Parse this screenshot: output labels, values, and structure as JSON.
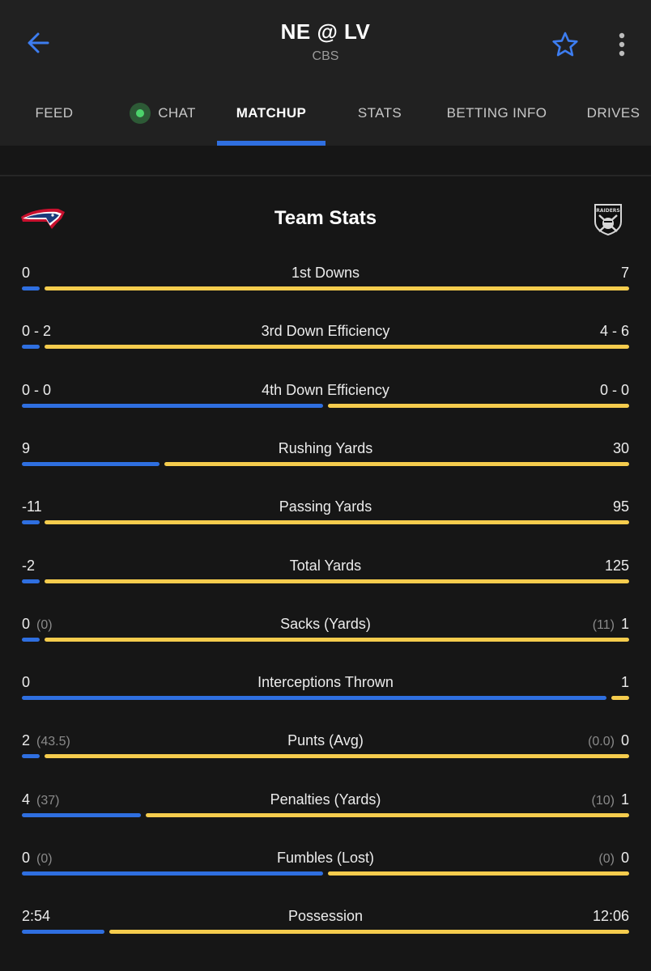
{
  "header": {
    "title": "NE @ LV",
    "network": "CBS"
  },
  "tabs": [
    {
      "label": "FEED"
    },
    {
      "label": "CHAT"
    },
    {
      "label": "MATCHUP"
    },
    {
      "label": "STATS"
    },
    {
      "label": "BETTING INFO"
    },
    {
      "label": "DRIVES"
    }
  ],
  "active_tab": "MATCHUP",
  "colors": {
    "accent": "#2f6fe0",
    "home_bar": "#2f6fe0",
    "away_bar": "#f5cc4d",
    "live": "#4cd26b"
  },
  "team_stats": {
    "title": "Team Stats",
    "home_logo": "patriots-logo",
    "away_logo": "raiders-logo",
    "away_logo_text": "RAIDERS",
    "rows": [
      {
        "label": "1st Downs",
        "home": "0",
        "away": "7",
        "home_share": 0.029
      },
      {
        "label": "3rd Down Efficiency",
        "home": "0 - 2",
        "away": "4 - 6",
        "home_share": 0.029
      },
      {
        "label": "4th Down Efficiency",
        "home": "0 - 0",
        "away": "0 - 0",
        "home_share": 0.5
      },
      {
        "label": "Rushing Yards",
        "home": "9",
        "away": "30",
        "home_share": 0.23
      },
      {
        "label": "Passing Yards",
        "home": "-11",
        "away": "95",
        "home_share": 0.029
      },
      {
        "label": "Total Yards",
        "home": "-2",
        "away": "125",
        "home_share": 0.029
      },
      {
        "label": "Sacks (Yards)",
        "home": "0",
        "home_sub": "(0)",
        "away": "1",
        "away_sub": "(11)",
        "home_share": 0.029
      },
      {
        "label": "Interceptions Thrown",
        "home": "0",
        "away": "1",
        "home_share": 0.97
      },
      {
        "label": "Punts (Avg)",
        "home": "2",
        "home_sub": "(43.5)",
        "away": "0",
        "away_sub": "(0.0)",
        "home_share": 0.029
      },
      {
        "label": "Penalties (Yards)",
        "home": "4",
        "home_sub": "(37)",
        "away": "1",
        "away_sub": "(10)",
        "home_share": 0.2
      },
      {
        "label": "Fumbles (Lost)",
        "home": "0",
        "home_sub": "(0)",
        "away": "0",
        "away_sub": "(0)",
        "home_share": 0.5
      },
      {
        "label": "Possession",
        "home": "2:54",
        "away": "12:06",
        "home_share": 0.14
      }
    ]
  }
}
